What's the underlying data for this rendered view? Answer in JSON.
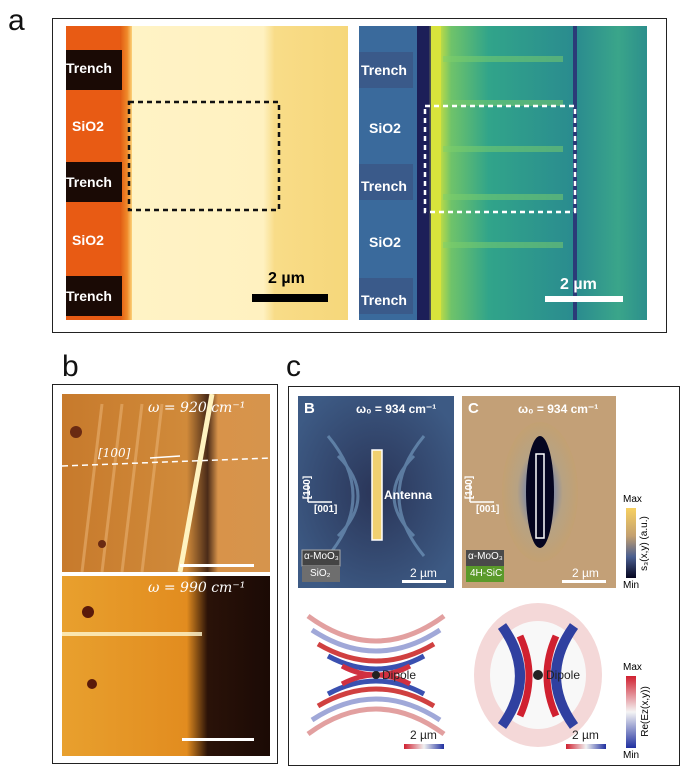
{
  "panel_labels": {
    "a": "a",
    "b": "b",
    "c": "c"
  },
  "panel_a": {
    "left_labels": [
      "Trench",
      "SiO2",
      "Trench",
      "SiO2",
      "Trench"
    ],
    "right_labels": [
      "Trench",
      "SiO2",
      "Trench",
      "SiO2",
      "Trench"
    ],
    "scalebar_left": "2 µm",
    "scalebar_right": "2 µm"
  },
  "panel_b": {
    "top_freq": "ω = 920 cm⁻¹",
    "bottom_freq": "ω = 990 cm⁻¹",
    "direction": "[100]"
  },
  "panel_c": {
    "B": {
      "letter": "B",
      "omega": "ω₀ = 934 cm⁻¹",
      "antenna_label": "Antenna",
      "axis_100": "[100]",
      "axis_001": "[001]",
      "material": "α-MoO₃",
      "substrate": "SiO₂",
      "scalebar": "2 µm"
    },
    "C": {
      "letter": "C",
      "omega": "ω₀ = 934 cm⁻¹",
      "axis_100": "[100]",
      "axis_001": "[001]",
      "material": "α-MoO₃",
      "substrate": "4H-SiC",
      "scalebar": "2 µm"
    },
    "colorbar_top": {
      "max": "Max",
      "min": "Min",
      "label": "s₃(x,y) (a.u.)"
    },
    "colorbar_bottom": {
      "max": "Max",
      "min": "Min",
      "label": "Re(Ez(x,y))"
    },
    "dipole_left": "Dipole",
    "dipole_right": "Dipole",
    "scalebar_sim_left": "2 µm",
    "scalebar_sim_right": "2 µm",
    "substrate_colors": {
      "SiO2": "#6e6e6e",
      "4H-SiC": "#5a9a2a"
    }
  }
}
